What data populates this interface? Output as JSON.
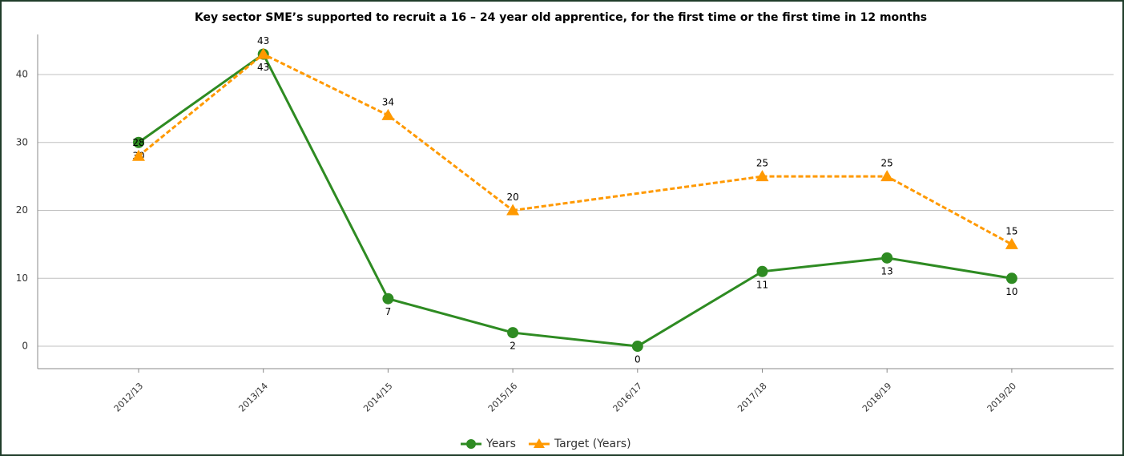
{
  "chart_data": {
    "type": "line",
    "title": "Key sector SME’s supported to recruit a 16 – 24 year old apprentice, for the first time or the first time in 12 months",
    "categories": [
      "2012/13",
      "2013/14",
      "2014/15",
      "2015/16",
      "2016/17",
      "2017/18",
      "2018/19",
      "2019/20"
    ],
    "series": [
      {
        "name": "Years",
        "color": "#2e8b22",
        "marker": "circle",
        "values": [
          30,
          43,
          7,
          2,
          0,
          11,
          13,
          10
        ]
      },
      {
        "name": "Target (Years)",
        "color": "#ff9900",
        "marker": "triangle",
        "dashed": true,
        "values": [
          28,
          43,
          34,
          20,
          null,
          25,
          25,
          15
        ]
      }
    ],
    "connect_gaps": true,
    "ylim": [
      -3.3,
      45.9
    ],
    "yticks": [
      0,
      10,
      20,
      30,
      40
    ],
    "grid": true,
    "legend": "bottom"
  }
}
